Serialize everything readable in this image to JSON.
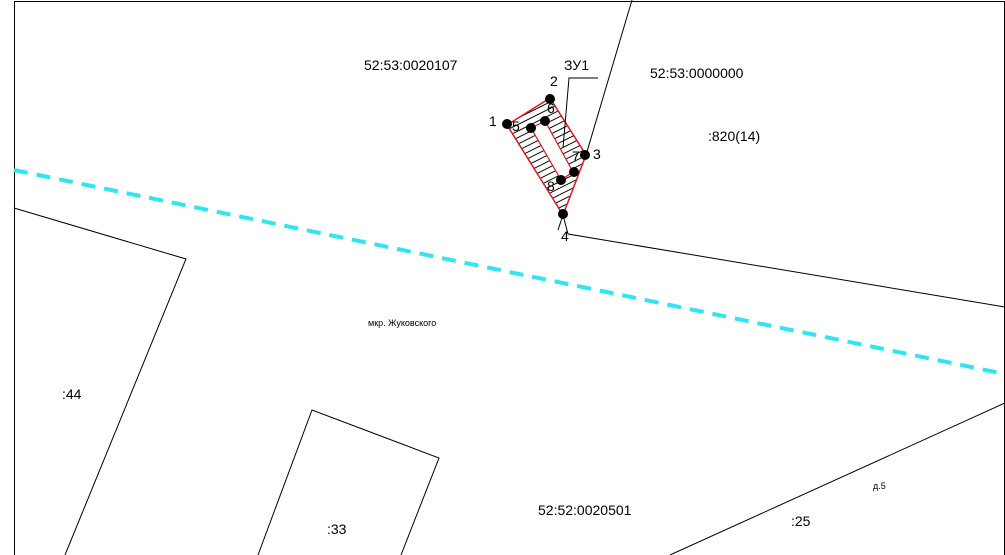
{
  "colors": {
    "background": "#ffffff",
    "parcel_line": "#000000",
    "plot_outline": "#e8141b",
    "boundary_dashed": "#2ee6f2",
    "point_marker": "#000000"
  },
  "map": {
    "labels": {
      "block_nw": "52:53:0020107",
      "block_ne": "52:53:0000000",
      "block_s": "52:52:0020501",
      "parcel_820": ":820(14)",
      "parcel_44": ":44",
      "parcel_33": ":33",
      "parcel_25": ":25",
      "house": "д.5",
      "district": "мкр. Жуковского",
      "plot": "ЗУ1"
    },
    "points": [
      {
        "num": "1"
      },
      {
        "num": "2"
      },
      {
        "num": "3"
      },
      {
        "num": "4"
      },
      {
        "num": "5"
      },
      {
        "num": "6"
      },
      {
        "num": "7"
      },
      {
        "num": "8"
      }
    ]
  }
}
